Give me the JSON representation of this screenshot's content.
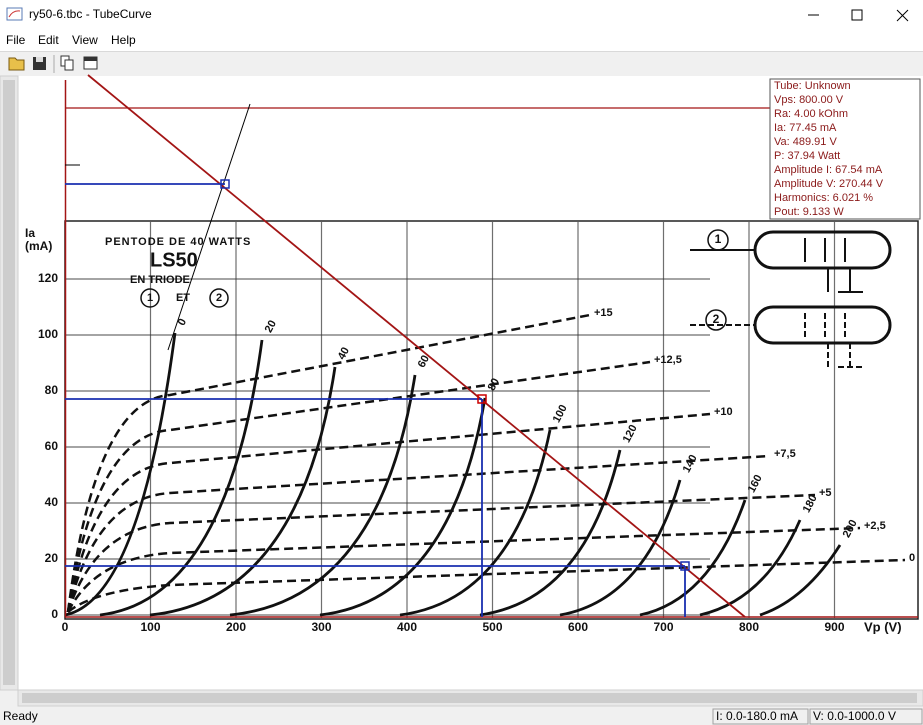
{
  "window": {
    "title": "ry50-6.tbc - TubeCurve"
  },
  "menu": [
    "File",
    "Edit",
    "View",
    "Help"
  ],
  "info_box": [
    "Tube: Unknown",
    "Vps: 800.00 V",
    "Ra: 4.00 kOhm",
    "Ia: 77.45 mA",
    "Va: 489.91 V",
    "P: 37.94 Watt",
    "Amplitude I: 67.54 mA",
    "Amplitude V: 270.44 V",
    "Harmonics: 6.021 %",
    "Pout: 9.133 W"
  ],
  "graph": {
    "y_label": [
      "Ia",
      "(mA)"
    ],
    "x_label": "Vp (V)",
    "title": "PENTODE DE 40 WATTS",
    "tube": "LS50",
    "mode": "EN TRIODE",
    "pins": [
      "1",
      "ET",
      "2"
    ],
    "diagram_labels": [
      "1",
      "2"
    ],
    "yticks": [
      0,
      20,
      40,
      60,
      80,
      100,
      120
    ],
    "xticks": [
      0,
      100,
      200,
      300,
      400,
      500,
      600,
      700,
      800,
      900
    ],
    "triode_curves": [
      0,
      20,
      40,
      60,
      80,
      100,
      120,
      140,
      160,
      180,
      200
    ],
    "pentode_curves": [
      "+15",
      "+12,5",
      "+10",
      "+7,5",
      "+5",
      "+2,5",
      "0"
    ]
  },
  "status": {
    "text": "Ready",
    "current_range": "I: 0.0-180.0 mA",
    "voltage_range": "V: 0.0-1000.0 V"
  }
}
